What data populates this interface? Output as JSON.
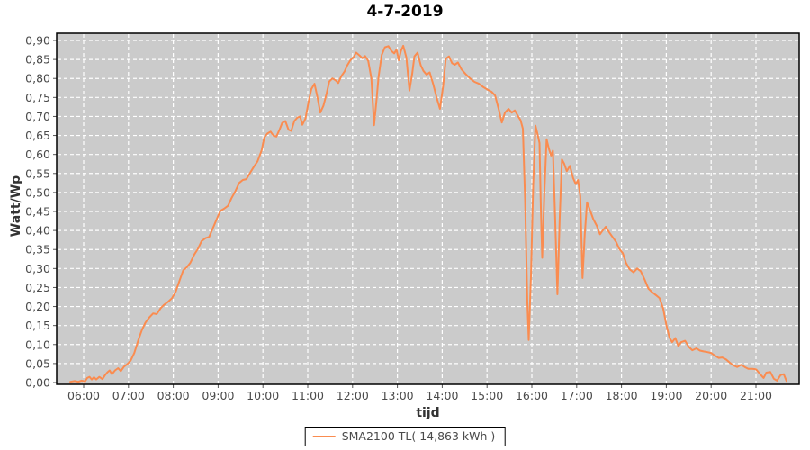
{
  "chart_data": {
    "type": "line",
    "title": "4-7-2019",
    "xlabel": "tijd",
    "ylabel": "Watt/Wp",
    "ylim": [
      0,
      0.9
    ],
    "xlim_hours": [
      5.4,
      21.97
    ],
    "grid": "white dashed on gray, both axes",
    "legend_position": "bottom-center",
    "colors": {
      "line": "#fa8c50",
      "plot_bg": "#cbcbcb",
      "grid": "#ffffff",
      "tick_text": "#4a4a4a",
      "axis": "#000000",
      "tick_mark": "#555555"
    },
    "y_ticks": [
      {
        "v": 0.0,
        "label": "0,00"
      },
      {
        "v": 0.05,
        "label": "0,05"
      },
      {
        "v": 0.1,
        "label": "0,10"
      },
      {
        "v": 0.15,
        "label": "0,15"
      },
      {
        "v": 0.2,
        "label": "0,20"
      },
      {
        "v": 0.25,
        "label": "0,25"
      },
      {
        "v": 0.3,
        "label": "0,30"
      },
      {
        "v": 0.35,
        "label": "0,35"
      },
      {
        "v": 0.4,
        "label": "0,40"
      },
      {
        "v": 0.45,
        "label": "0,45"
      },
      {
        "v": 0.5,
        "label": "0,50"
      },
      {
        "v": 0.55,
        "label": "0,55"
      },
      {
        "v": 0.6,
        "label": "0,60"
      },
      {
        "v": 0.65,
        "label": "0,65"
      },
      {
        "v": 0.7,
        "label": "0,70"
      },
      {
        "v": 0.75,
        "label": "0,75"
      },
      {
        "v": 0.8,
        "label": "0,80"
      },
      {
        "v": 0.85,
        "label": "0,85"
      },
      {
        "v": 0.9,
        "label": "0,90"
      }
    ],
    "x_ticks": [
      {
        "t": 6,
        "label": "06:00"
      },
      {
        "t": 7,
        "label": "07:00"
      },
      {
        "t": 8,
        "label": "08:00"
      },
      {
        "t": 9,
        "label": "09:00"
      },
      {
        "t": 10,
        "label": "10:00"
      },
      {
        "t": 11,
        "label": "11:00"
      },
      {
        "t": 12,
        "label": "12:00"
      },
      {
        "t": 13,
        "label": "13:00"
      },
      {
        "t": 14,
        "label": "14:00"
      },
      {
        "t": 15,
        "label": "15:00"
      },
      {
        "t": 16,
        "label": "16:00"
      },
      {
        "t": 17,
        "label": "17:00"
      },
      {
        "t": 18,
        "label": "18:00"
      },
      {
        "t": 19,
        "label": "19:00"
      },
      {
        "t": 20,
        "label": "20:00"
      },
      {
        "t": 21,
        "label": "21:00"
      }
    ],
    "series": [
      {
        "name": "SMA2100 TL",
        "legend_label": "SMA2100 TL( 14,863 kWh )",
        "color": "#fa8c50",
        "points": [
          [
            5.7,
            0.002
          ],
          [
            5.8,
            0.004
          ],
          [
            5.88,
            0.002
          ],
          [
            5.95,
            0.005
          ],
          [
            6.03,
            0.003
          ],
          [
            6.08,
            0.012
          ],
          [
            6.13,
            0.015
          ],
          [
            6.18,
            0.008
          ],
          [
            6.23,
            0.014
          ],
          [
            6.28,
            0.008
          ],
          [
            6.35,
            0.015
          ],
          [
            6.42,
            0.009
          ],
          [
            6.48,
            0.02
          ],
          [
            6.53,
            0.027
          ],
          [
            6.58,
            0.032
          ],
          [
            6.63,
            0.022
          ],
          [
            6.7,
            0.032
          ],
          [
            6.77,
            0.038
          ],
          [
            6.83,
            0.03
          ],
          [
            6.9,
            0.042
          ],
          [
            6.97,
            0.048
          ],
          [
            7.05,
            0.058
          ],
          [
            7.13,
            0.078
          ],
          [
            7.22,
            0.112
          ],
          [
            7.3,
            0.138
          ],
          [
            7.38,
            0.158
          ],
          [
            7.47,
            0.172
          ],
          [
            7.55,
            0.182
          ],
          [
            7.63,
            0.18
          ],
          [
            7.72,
            0.196
          ],
          [
            7.8,
            0.205
          ],
          [
            7.88,
            0.212
          ],
          [
            7.97,
            0.222
          ],
          [
            8.05,
            0.238
          ],
          [
            8.13,
            0.265
          ],
          [
            8.22,
            0.295
          ],
          [
            8.3,
            0.303
          ],
          [
            8.38,
            0.315
          ],
          [
            8.47,
            0.337
          ],
          [
            8.55,
            0.352
          ],
          [
            8.63,
            0.372
          ],
          [
            8.72,
            0.38
          ],
          [
            8.8,
            0.383
          ],
          [
            8.88,
            0.405
          ],
          [
            8.97,
            0.43
          ],
          [
            9.05,
            0.452
          ],
          [
            9.13,
            0.457
          ],
          [
            9.22,
            0.465
          ],
          [
            9.3,
            0.485
          ],
          [
            9.38,
            0.502
          ],
          [
            9.47,
            0.525
          ],
          [
            9.55,
            0.533
          ],
          [
            9.63,
            0.535
          ],
          [
            9.72,
            0.553
          ],
          [
            9.8,
            0.568
          ],
          [
            9.88,
            0.582
          ],
          [
            9.97,
            0.61
          ],
          [
            10.03,
            0.645
          ],
          [
            10.1,
            0.655
          ],
          [
            10.17,
            0.66
          ],
          [
            10.23,
            0.65
          ],
          [
            10.3,
            0.647
          ],
          [
            10.37,
            0.665
          ],
          [
            10.43,
            0.683
          ],
          [
            10.5,
            0.688
          ],
          [
            10.57,
            0.665
          ],
          [
            10.63,
            0.662
          ],
          [
            10.7,
            0.688
          ],
          [
            10.77,
            0.697
          ],
          [
            10.83,
            0.7
          ],
          [
            10.88,
            0.678
          ],
          [
            10.95,
            0.695
          ],
          [
            11.02,
            0.74
          ],
          [
            11.08,
            0.772
          ],
          [
            11.15,
            0.786
          ],
          [
            11.22,
            0.748
          ],
          [
            11.28,
            0.71
          ],
          [
            11.35,
            0.728
          ],
          [
            11.42,
            0.76
          ],
          [
            11.48,
            0.792
          ],
          [
            11.55,
            0.8
          ],
          [
            11.62,
            0.795
          ],
          [
            11.68,
            0.788
          ],
          [
            11.75,
            0.806
          ],
          [
            11.82,
            0.818
          ],
          [
            11.88,
            0.834
          ],
          [
            11.95,
            0.848
          ],
          [
            12.02,
            0.856
          ],
          [
            12.08,
            0.868
          ],
          [
            12.15,
            0.861
          ],
          [
            12.22,
            0.853
          ],
          [
            12.28,
            0.859
          ],
          [
            12.35,
            0.846
          ],
          [
            12.42,
            0.8
          ],
          [
            12.48,
            0.677
          ],
          [
            12.53,
            0.738
          ],
          [
            12.58,
            0.805
          ],
          [
            12.65,
            0.862
          ],
          [
            12.72,
            0.882
          ],
          [
            12.8,
            0.885
          ],
          [
            12.87,
            0.872
          ],
          [
            12.93,
            0.866
          ],
          [
            12.98,
            0.876
          ],
          [
            13.03,
            0.848
          ],
          [
            13.08,
            0.873
          ],
          [
            13.13,
            0.886
          ],
          [
            13.2,
            0.855
          ],
          [
            13.27,
            0.768
          ],
          [
            13.33,
            0.812
          ],
          [
            13.38,
            0.858
          ],
          [
            13.45,
            0.868
          ],
          [
            13.52,
            0.835
          ],
          [
            13.58,
            0.82
          ],
          [
            13.65,
            0.81
          ],
          [
            13.72,
            0.816
          ],
          [
            13.8,
            0.785
          ],
          [
            13.88,
            0.748
          ],
          [
            13.95,
            0.72
          ],
          [
            14.02,
            0.78
          ],
          [
            14.08,
            0.852
          ],
          [
            14.15,
            0.858
          ],
          [
            14.22,
            0.84
          ],
          [
            14.28,
            0.836
          ],
          [
            14.35,
            0.842
          ],
          [
            14.43,
            0.824
          ],
          [
            14.52,
            0.812
          ],
          [
            14.62,
            0.8
          ],
          [
            14.72,
            0.791
          ],
          [
            14.82,
            0.786
          ],
          [
            14.92,
            0.777
          ],
          [
            15.02,
            0.77
          ],
          [
            15.1,
            0.765
          ],
          [
            15.18,
            0.755
          ],
          [
            15.27,
            0.715
          ],
          [
            15.33,
            0.684
          ],
          [
            15.4,
            0.71
          ],
          [
            15.48,
            0.72
          ],
          [
            15.55,
            0.71
          ],
          [
            15.62,
            0.716
          ],
          [
            15.68,
            0.703
          ],
          [
            15.75,
            0.69
          ],
          [
            15.8,
            0.668
          ],
          [
            15.85,
            0.48
          ],
          [
            15.9,
            0.21
          ],
          [
            15.93,
            0.112
          ],
          [
            15.98,
            0.28
          ],
          [
            16.03,
            0.52
          ],
          [
            16.08,
            0.676
          ],
          [
            16.13,
            0.652
          ],
          [
            16.17,
            0.63
          ],
          [
            16.2,
            0.46
          ],
          [
            16.23,
            0.328
          ],
          [
            16.28,
            0.5
          ],
          [
            16.33,
            0.64
          ],
          [
            16.38,
            0.615
          ],
          [
            16.43,
            0.597
          ],
          [
            16.47,
            0.61
          ],
          [
            16.52,
            0.43
          ],
          [
            16.57,
            0.232
          ],
          [
            16.62,
            0.43
          ],
          [
            16.67,
            0.587
          ],
          [
            16.72,
            0.576
          ],
          [
            16.78,
            0.556
          ],
          [
            16.85,
            0.57
          ],
          [
            16.92,
            0.538
          ],
          [
            16.98,
            0.522
          ],
          [
            17.03,
            0.533
          ],
          [
            17.08,
            0.49
          ],
          [
            17.13,
            0.275
          ],
          [
            17.18,
            0.39
          ],
          [
            17.23,
            0.474
          ],
          [
            17.3,
            0.453
          ],
          [
            17.37,
            0.43
          ],
          [
            17.45,
            0.412
          ],
          [
            17.52,
            0.39
          ],
          [
            17.58,
            0.4
          ],
          [
            17.65,
            0.41
          ],
          [
            17.72,
            0.396
          ],
          [
            17.8,
            0.383
          ],
          [
            17.88,
            0.37
          ],
          [
            17.95,
            0.352
          ],
          [
            18.03,
            0.34
          ],
          [
            18.1,
            0.315
          ],
          [
            18.18,
            0.298
          ],
          [
            18.27,
            0.29
          ],
          [
            18.35,
            0.3
          ],
          [
            18.43,
            0.293
          ],
          [
            18.52,
            0.27
          ],
          [
            18.6,
            0.247
          ],
          [
            18.68,
            0.238
          ],
          [
            18.77,
            0.23
          ],
          [
            18.85,
            0.222
          ],
          [
            18.93,
            0.195
          ],
          [
            19.0,
            0.152
          ],
          [
            19.07,
            0.118
          ],
          [
            19.13,
            0.106
          ],
          [
            19.2,
            0.117
          ],
          [
            19.27,
            0.096
          ],
          [
            19.33,
            0.106
          ],
          [
            19.42,
            0.11
          ],
          [
            19.5,
            0.094
          ],
          [
            19.58,
            0.085
          ],
          [
            19.67,
            0.09
          ],
          [
            19.75,
            0.084
          ],
          [
            19.83,
            0.082
          ],
          [
            19.92,
            0.08
          ],
          [
            20.0,
            0.078
          ],
          [
            20.08,
            0.071
          ],
          [
            20.17,
            0.065
          ],
          [
            20.25,
            0.066
          ],
          [
            20.33,
            0.061
          ],
          [
            20.42,
            0.052
          ],
          [
            20.5,
            0.045
          ],
          [
            20.58,
            0.041
          ],
          [
            20.67,
            0.047
          ],
          [
            20.75,
            0.041
          ],
          [
            20.83,
            0.036
          ],
          [
            20.92,
            0.036
          ],
          [
            21.0,
            0.035
          ],
          [
            21.08,
            0.024
          ],
          [
            21.17,
            0.012
          ],
          [
            21.23,
            0.026
          ],
          [
            21.32,
            0.028
          ],
          [
            21.4,
            0.01
          ],
          [
            21.47,
            0.005
          ],
          [
            21.55,
            0.02
          ],
          [
            21.62,
            0.022
          ],
          [
            21.68,
            0.004
          ]
        ]
      }
    ]
  }
}
